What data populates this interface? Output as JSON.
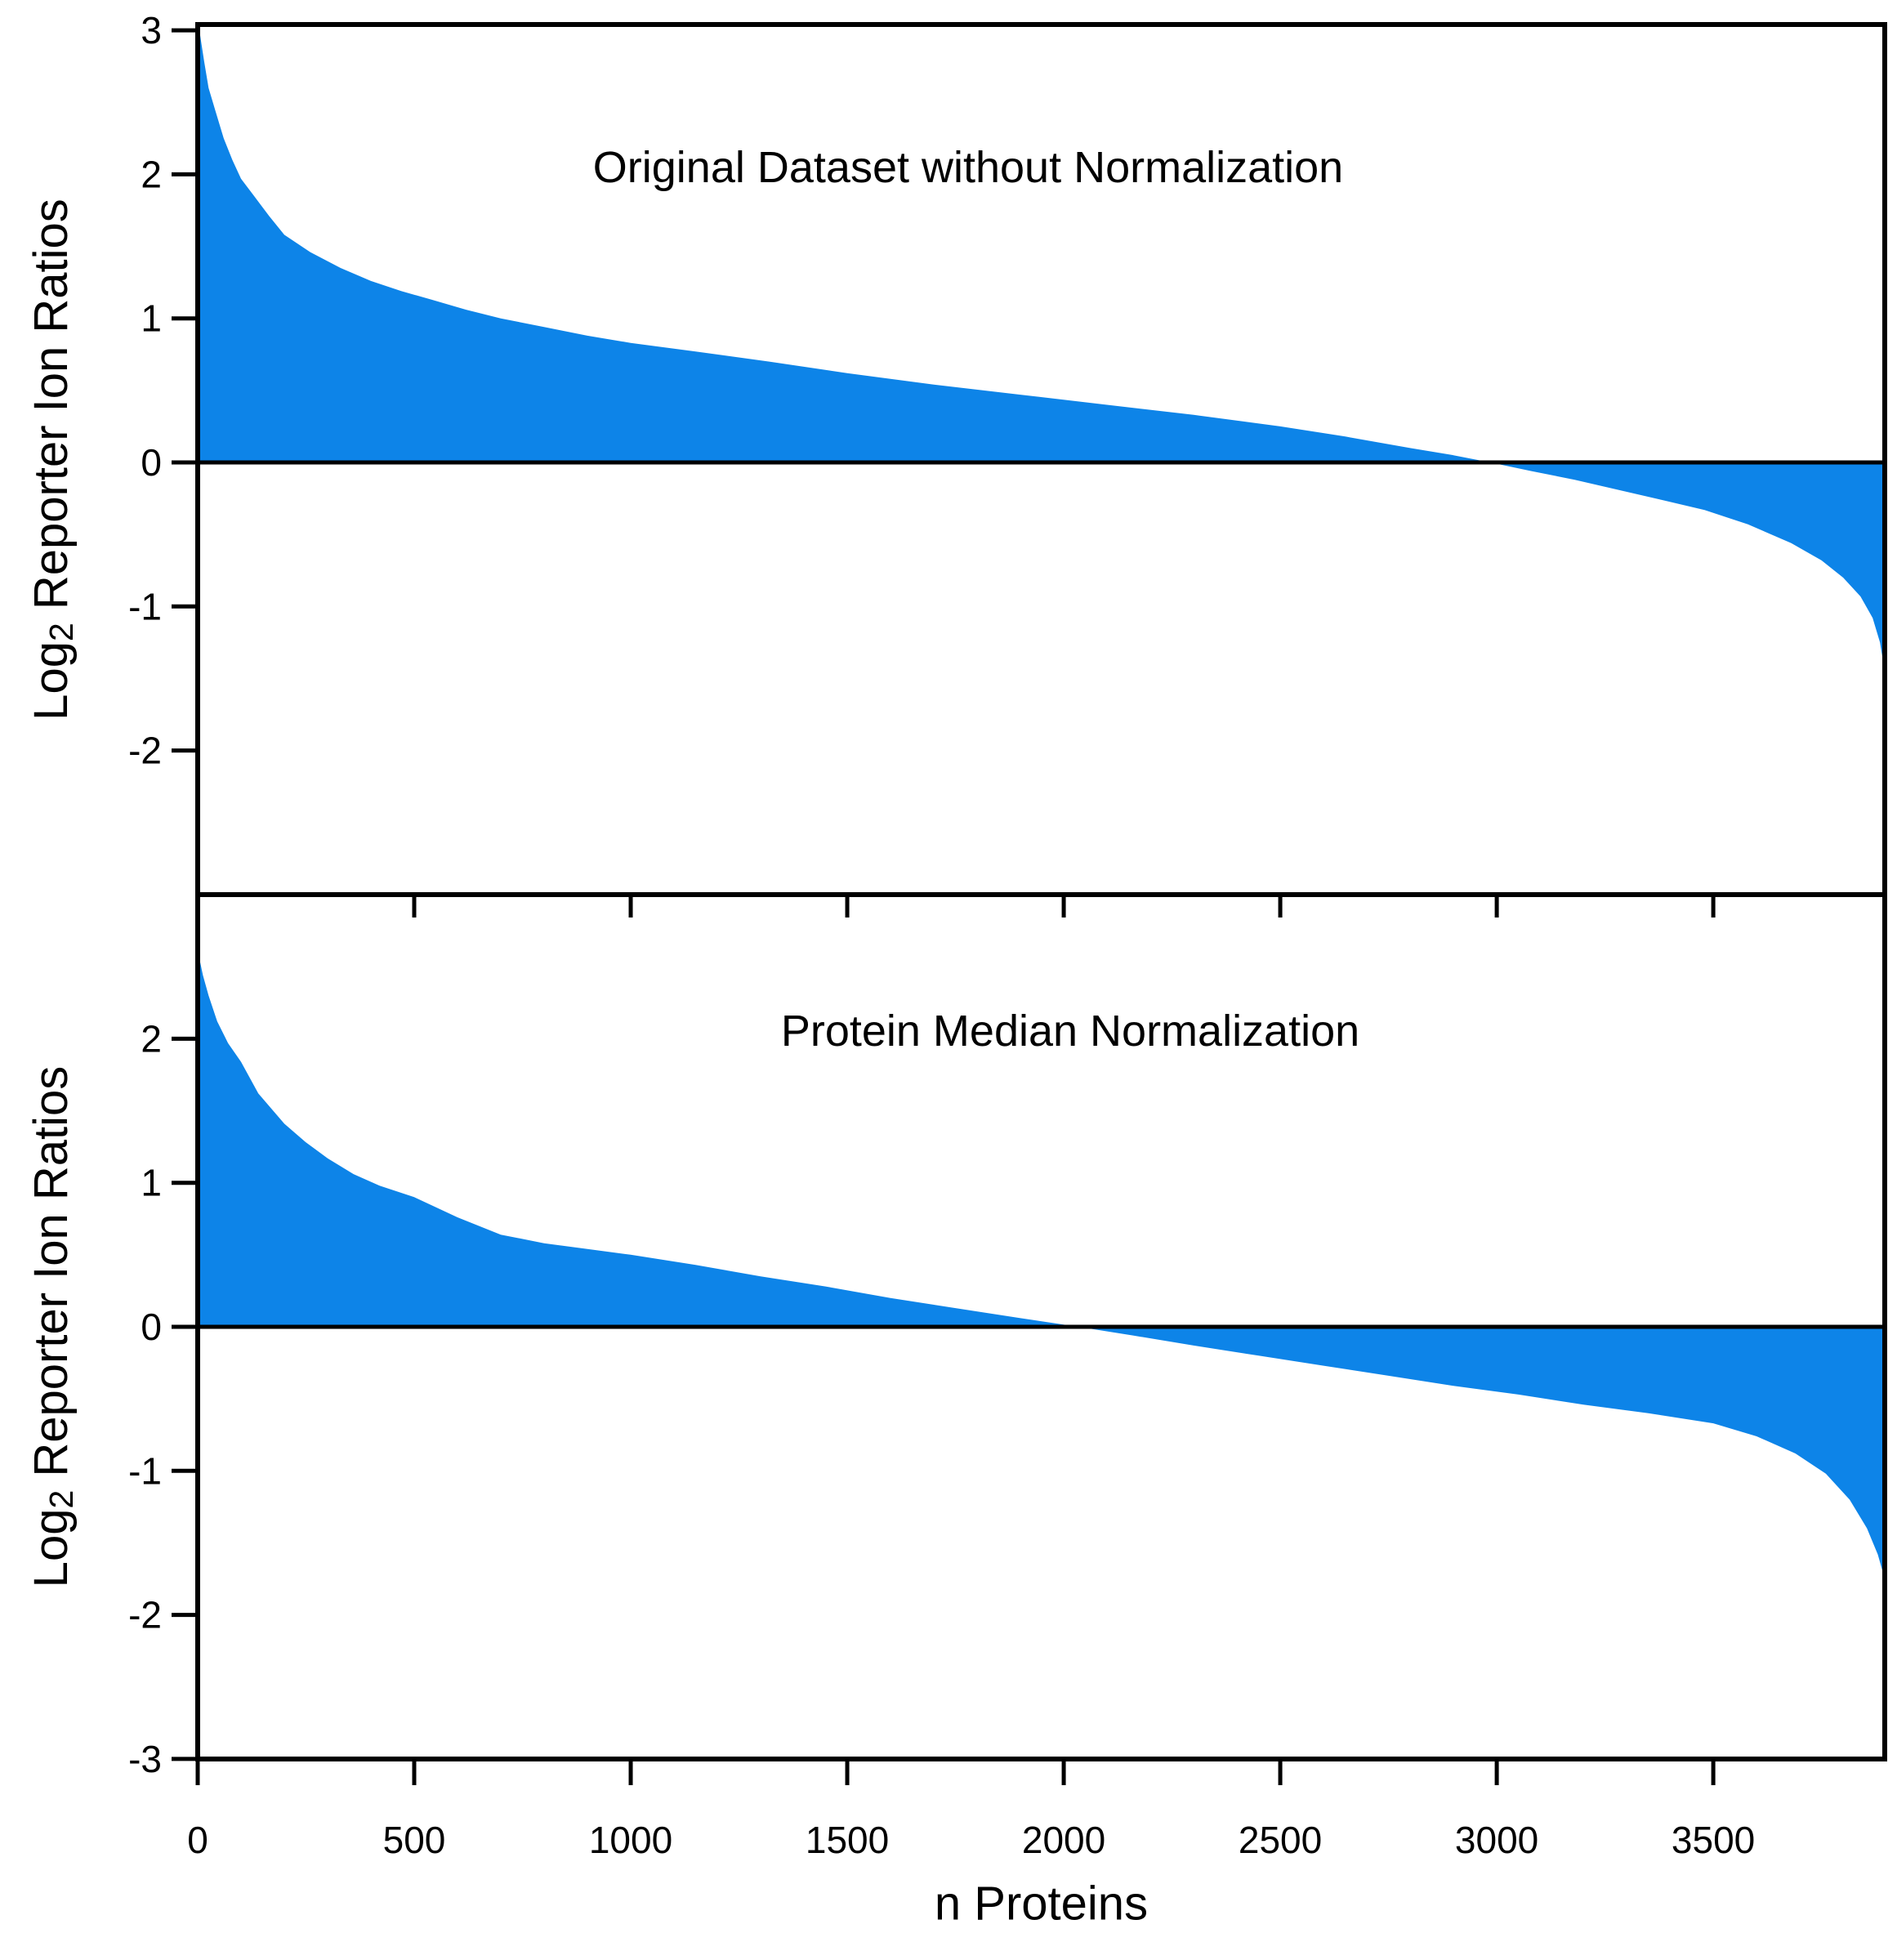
{
  "figure": {
    "background": "#ffffff",
    "area_fill_color": "#0d84e8",
    "axis_color": "#000000",
    "xlabel": "n Proteins",
    "ylabel_text": "Log2 Reporter Ion Ratios",
    "ylabel_parts": {
      "prefix": "Log",
      "sub": "2",
      "suffix": " Reporter Ion Ratios"
    }
  },
  "chart_data": [
    {
      "type": "area",
      "title": "Original Dataset without Normalization",
      "xlabel": "n Proteins",
      "ylabel": "Log2 Reporter Ion Ratios",
      "xlim": [
        0,
        3896
      ],
      "ylim": [
        -3.0,
        3.05
      ],
      "xticks": [
        0,
        500,
        1000,
        1500,
        2000,
        2500,
        3000,
        3500
      ],
      "yticks": [
        3,
        2,
        1,
        0,
        -1,
        -2
      ],
      "grid": false,
      "legend": "none",
      "zero_crossing_n": 2985,
      "max_value": 3.05,
      "min_value": -1.45,
      "points": [
        [
          0,
          3.05
        ],
        [
          4,
          3.0
        ],
        [
          8,
          2.92
        ],
        [
          15,
          2.78
        ],
        [
          25,
          2.6
        ],
        [
          40,
          2.45
        ],
        [
          60,
          2.25
        ],
        [
          80,
          2.1
        ],
        [
          100,
          1.97
        ],
        [
          130,
          1.85
        ],
        [
          165,
          1.71
        ],
        [
          200,
          1.58
        ],
        [
          260,
          1.46
        ],
        [
          330,
          1.35
        ],
        [
          400,
          1.26
        ],
        [
          470,
          1.19
        ],
        [
          540,
          1.13
        ],
        [
          620,
          1.06
        ],
        [
          700,
          1.0
        ],
        [
          800,
          0.94
        ],
        [
          900,
          0.88
        ],
        [
          1000,
          0.83
        ],
        [
          1150,
          0.77
        ],
        [
          1320,
          0.7
        ],
        [
          1500,
          0.62
        ],
        [
          1700,
          0.54
        ],
        [
          1900,
          0.47
        ],
        [
          2100,
          0.4
        ],
        [
          2300,
          0.33
        ],
        [
          2500,
          0.25
        ],
        [
          2650,
          0.18
        ],
        [
          2800,
          0.1
        ],
        [
          2900,
          0.05
        ],
        [
          2985,
          0.0
        ],
        [
          3080,
          -0.06
        ],
        [
          3180,
          -0.12
        ],
        [
          3280,
          -0.19
        ],
        [
          3380,
          -0.26
        ],
        [
          3480,
          -0.33
        ],
        [
          3580,
          -0.43
        ],
        [
          3680,
          -0.56
        ],
        [
          3750,
          -0.68
        ],
        [
          3800,
          -0.8
        ],
        [
          3840,
          -0.93
        ],
        [
          3868,
          -1.08
        ],
        [
          3885,
          -1.25
        ],
        [
          3896,
          -1.45
        ]
      ]
    },
    {
      "type": "area",
      "title": "Protein Median Normalization",
      "xlabel": "n Proteins",
      "ylabel": "Log2 Reporter Ion Ratios",
      "xlim": [
        0,
        3896
      ],
      "ylim": [
        -3.0,
        3.0
      ],
      "xticks": [
        0,
        500,
        1000,
        1500,
        2000,
        2500,
        3000,
        3500
      ],
      "yticks": [
        2,
        1,
        0,
        -1,
        -2,
        -3
      ],
      "grid": false,
      "legend": "none",
      "zero_crossing_n": 2034,
      "max_value": 2.6,
      "min_value": -1.75,
      "points": [
        [
          0,
          2.6
        ],
        [
          5,
          2.54
        ],
        [
          12,
          2.44
        ],
        [
          25,
          2.3
        ],
        [
          45,
          2.12
        ],
        [
          70,
          1.97
        ],
        [
          100,
          1.84
        ],
        [
          140,
          1.62
        ],
        [
          200,
          1.41
        ],
        [
          250,
          1.28
        ],
        [
          300,
          1.17
        ],
        [
          360,
          1.06
        ],
        [
          420,
          0.98
        ],
        [
          500,
          0.9
        ],
        [
          600,
          0.76
        ],
        [
          700,
          0.64
        ],
        [
          800,
          0.58
        ],
        [
          900,
          0.54
        ],
        [
          1000,
          0.5
        ],
        [
          1150,
          0.43
        ],
        [
          1300,
          0.35
        ],
        [
          1450,
          0.28
        ],
        [
          1600,
          0.2
        ],
        [
          1750,
          0.13
        ],
        [
          1900,
          0.06
        ],
        [
          2034,
          0.0
        ],
        [
          2160,
          -0.06
        ],
        [
          2300,
          -0.13
        ],
        [
          2450,
          -0.2
        ],
        [
          2600,
          -0.27
        ],
        [
          2750,
          -0.34
        ],
        [
          2900,
          -0.41
        ],
        [
          3050,
          -0.47
        ],
        [
          3200,
          -0.54
        ],
        [
          3350,
          -0.6
        ],
        [
          3500,
          -0.67
        ],
        [
          3600,
          -0.76
        ],
        [
          3690,
          -0.88
        ],
        [
          3760,
          -1.02
        ],
        [
          3815,
          -1.2
        ],
        [
          3855,
          -1.4
        ],
        [
          3880,
          -1.58
        ],
        [
          3896,
          -1.75
        ]
      ]
    }
  ]
}
